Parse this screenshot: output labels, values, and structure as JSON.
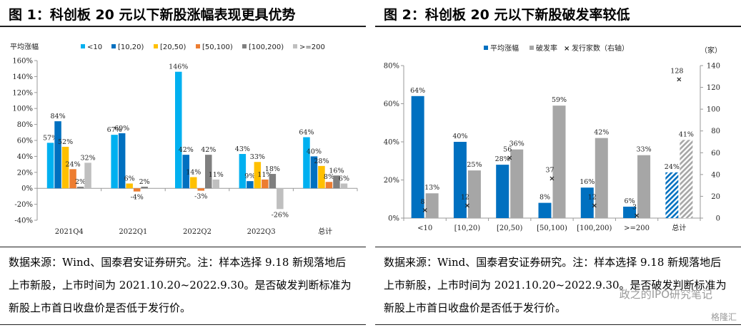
{
  "figure1": {
    "title": "图 1：科创板 20 元以下新股涨幅表现更具优势",
    "note": "数据来源：Wind、国泰君安证券研究。注：样本选择 9.18 新规落地后上市新股，上市时间为 2021.10.20~2022.9.30。是否破发判断标准为新股上市首日收盘价是否低于发行价。"
  },
  "figure2": {
    "title": "图 2：科创板 20 元以下新股破发率较低",
    "note": "数据来源：Wind、国泰君安证券研究。注：样本选择 9.18 新规落地后上市新股，上市时间为 2021.10.20~2022.9.30。是否破发判断标准为新股上市首日收盘价是否低于发行价。"
  },
  "watermark": "政之的IPO研究笔记",
  "watermark2": "格隆汇",
  "chart_data": [
    {
      "type": "bar",
      "ylabel": "平均涨幅",
      "categories": [
        "2021Q4",
        "2022Q1",
        "2022Q2",
        "2022Q3",
        "总计"
      ],
      "ylim": [
        -40,
        160
      ],
      "yticks": [
        -40,
        -20,
        0,
        20,
        40,
        60,
        80,
        100,
        120,
        140,
        160
      ],
      "y_unit": "%",
      "legend_position": "top",
      "series": [
        {
          "name": "<10",
          "color": "#00b0f0",
          "values": [
            57,
            67,
            146,
            43,
            64
          ]
        },
        {
          "name": "[10,20)",
          "color": "#0070c0",
          "values": [
            84,
            69,
            42,
            9,
            40
          ]
        },
        {
          "name": "[20,50)",
          "color": "#ffc000",
          "values": [
            52,
            6,
            14,
            33,
            28
          ]
        },
        {
          "name": "[50,100)",
          "color": "#ed7d31",
          "values": [
            24,
            -4,
            -3,
            11,
            8
          ]
        },
        {
          "name": "[100,200)",
          "color": "#7f7f7f",
          "values": [
            2,
            2,
            42,
            18,
            16
          ]
        },
        {
          "name": ">=200",
          "color": "#bfbfbf",
          "values": [
            32,
            null,
            11,
            -26,
            6
          ]
        }
      ]
    },
    {
      "type": "bar",
      "categories": [
        "<10",
        "[10,20)",
        "[20,50)",
        "[50,100)",
        "[100,200)",
        ">=200",
        "总计"
      ],
      "ylim": [
        0,
        80
      ],
      "yticks": [
        0,
        20,
        40,
        60,
        80
      ],
      "y_unit": "%",
      "y2lim": [
        0,
        140
      ],
      "y2ticks": [
        0,
        20,
        40,
        60,
        80,
        100,
        120,
        140
      ],
      "y2label": "（家）",
      "legend_position": "top",
      "series": [
        {
          "name": "平均涨幅",
          "color": "#0070c0",
          "values": [
            64,
            40,
            28,
            8,
            16,
            6,
            24
          ]
        },
        {
          "name": "破发率",
          "color": "#a6a6a6",
          "values": [
            13,
            25,
            36,
            59,
            42,
            33,
            41
          ]
        },
        {
          "name": "发行家数（右轴）",
          "color": "#c00000",
          "marker": "x",
          "axis": "right",
          "values": [
            8,
            12,
            56,
            37,
            12,
            3,
            128
          ]
        }
      ]
    }
  ]
}
